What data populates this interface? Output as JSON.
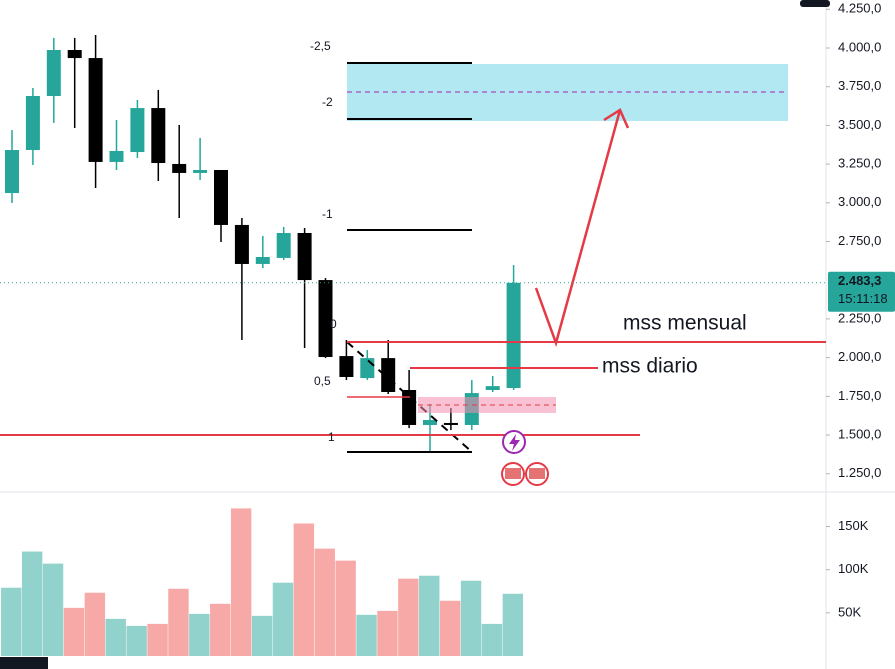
{
  "chart_data": {
    "type": "candlestick",
    "open": [
      3063,
      3341,
      3690,
      3987,
      3935,
      3264,
      3328,
      3612,
      3251,
      3193,
      3212,
      2857,
      2605,
      2644,
      2805,
      2501,
      2010,
      1868,
      1997,
      1791,
      1565,
      1578,
      1565,
      1791,
      1804
    ],
    "high": [
      3470,
      3742,
      4065,
      4065,
      4084,
      3535,
      3664,
      3729,
      3503,
      3419,
      3212,
      2902,
      2786,
      2844,
      2837,
      2514,
      2114,
      2049,
      2114,
      1920,
      1700,
      1674,
      1855,
      1881,
      2598
    ],
    "low": [
      2999,
      3244,
      3516,
      3483,
      3096,
      3212,
      3289,
      3141,
      2902,
      3147,
      2747,
      2114,
      2579,
      2630,
      2062,
      1997,
      1855,
      1855,
      1765,
      1545,
      1384,
      1532,
      1532,
      1778,
      1791
    ],
    "close": [
      3341,
      3690,
      3987,
      3935,
      3264,
      3335,
      3612,
      3257,
      3193,
      3212,
      2857,
      2605,
      2650,
      2805,
      2501,
      2004,
      1875,
      1997,
      1778,
      1565,
      1597,
      1565,
      1771,
      1816,
      2483.3
    ],
    "volume": [
      79100,
      121000,
      107000,
      55800,
      73300,
      43000,
      34900,
      37200,
      77900,
      48800,
      60500,
      171000,
      46500,
      84900,
      153500,
      124400,
      110500,
      47700,
      52300,
      89600,
      93000,
      64000,
      87200,
      37200,
      72100
    ],
    "up_color": "#26a69a",
    "down_color": "#000000",
    "volume_up_color": "#92d2cc",
    "volume_down_color": "#f7a9a7",
    "ylim": [
      1145,
      4310
    ],
    "yticks": [
      {
        "value": 1250,
        "label": "1.250,0"
      },
      {
        "value": 1500,
        "label": "1.500,0"
      },
      {
        "value": 1750,
        "label": "1.750,0"
      },
      {
        "value": 2000,
        "label": "2.000,0"
      },
      {
        "value": 2250,
        "label": "2.250,0"
      },
      {
        "value": 2750,
        "label": "2.750,0"
      },
      {
        "value": 3000,
        "label": "3.000,0"
      },
      {
        "value": 3250,
        "label": "3.250,0"
      },
      {
        "value": 3500,
        "label": "3.500,0"
      },
      {
        "value": 3750,
        "label": "3.750,0"
      },
      {
        "value": 4000,
        "label": "4.000,0"
      },
      {
        "value": 4250,
        "label": "4.250,0"
      }
    ],
    "volume_ylim": [
      0,
      190000
    ],
    "volume_yticks": [
      {
        "value": 50000,
        "label": "50K"
      },
      {
        "value": 100000,
        "label": "100K"
      },
      {
        "value": 150000,
        "label": "150K"
      }
    ],
    "last_price": {
      "value": 2483.3,
      "label": "2.483,3"
    },
    "last_time": "15:11:18",
    "fib_labels": [
      "-2,5",
      "-2",
      "-1",
      "0",
      "0,5",
      "1"
    ],
    "annotations": [
      "mss mensual",
      "mss diario"
    ]
  }
}
